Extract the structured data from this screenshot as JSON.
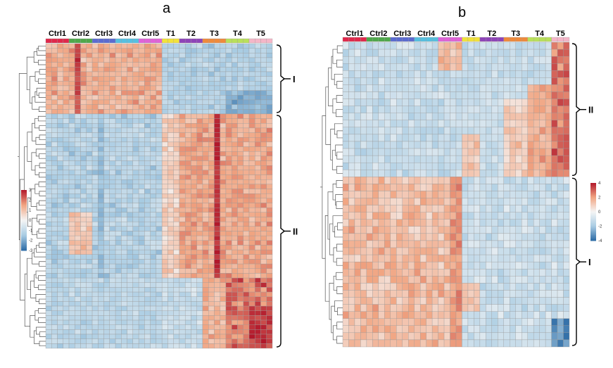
{
  "chart_data": [
    {
      "type": "heatmap",
      "panel": "a",
      "column_groups": [
        {
          "label": "Ctrl1",
          "color": "#e0284b",
          "n": 4
        },
        {
          "label": "Ctrl2",
          "color": "#4ea84a",
          "n": 4
        },
        {
          "label": "Ctrl3",
          "color": "#5b6bd0",
          "n": 4
        },
        {
          "label": "Ctrl4",
          "color": "#56c0e0",
          "n": 4
        },
        {
          "label": "Ctrl5",
          "color": "#e062d8",
          "n": 4
        },
        {
          "label": "T1",
          "color": "#f2e23a",
          "n": 3
        },
        {
          "label": "T2",
          "color": "#8e44b8",
          "n": 4
        },
        {
          "label": "T3",
          "color": "#ef8a3c",
          "n": 4
        },
        {
          "label": "T4",
          "color": "#b9e05a",
          "n": 4
        },
        {
          "label": "T5",
          "color": "#f4b6c8",
          "n": 4
        }
      ],
      "clusters": [
        {
          "label": "I",
          "rows": 15
        },
        {
          "label": "II",
          "rows": 50
        }
      ],
      "color_scale": {
        "ticks": [
          "3",
          "2",
          "1",
          "0",
          "-1",
          "-2",
          "-3"
        ],
        "range": [
          -3,
          3
        ],
        "colors": [
          "#2b6aa5",
          "#a9cce3",
          "#f5f5f5",
          "#f1a582",
          "#b2182b"
        ]
      }
    },
    {
      "type": "heatmap",
      "panel": "b",
      "column_groups": [
        {
          "label": "Ctrl1",
          "color": "#e0284b",
          "n": 4
        },
        {
          "label": "Ctrl2",
          "color": "#4ea84a",
          "n": 4
        },
        {
          "label": "Ctrl3",
          "color": "#5b6bd0",
          "n": 4
        },
        {
          "label": "Ctrl4",
          "color": "#56c0e0",
          "n": 4
        },
        {
          "label": "Ctrl5",
          "color": "#e062d8",
          "n": 4
        },
        {
          "label": "T1",
          "color": "#f2e23a",
          "n": 3
        },
        {
          "label": "T2",
          "color": "#8e44b8",
          "n": 4
        },
        {
          "label": "T3",
          "color": "#ef8a3c",
          "n": 4
        },
        {
          "label": "T4",
          "color": "#b9e05a",
          "n": 4
        },
        {
          "label": "T5",
          "color": "#f4b6c8",
          "n": 3
        }
      ],
      "clusters": [
        {
          "label": "II",
          "rows": 19
        },
        {
          "label": "I",
          "rows": 24
        }
      ],
      "color_scale": {
        "ticks": [
          "4",
          "2",
          "0",
          "-2",
          "-4"
        ],
        "range": [
          -4,
          4
        ],
        "colors": [
          "#2b6aa5",
          "#a9cce3",
          "#f5f5f5",
          "#f1a582",
          "#b2182b"
        ]
      }
    }
  ]
}
